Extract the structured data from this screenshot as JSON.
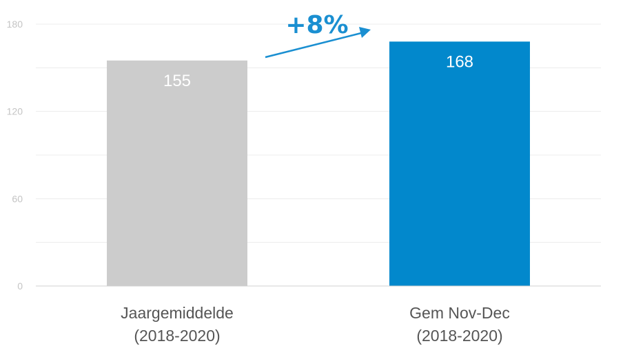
{
  "chart_data": {
    "type": "bar",
    "title": "",
    "xlabel": "",
    "ylabel": "",
    "ylim": [
      0,
      180
    ],
    "yticks": [
      0,
      60,
      120,
      180
    ],
    "grid": true,
    "categories": [
      [
        "Jaargemiddelde",
        "(2018-2020)"
      ],
      [
        "Gem Nov-Dec",
        "(2018-2020)"
      ]
    ],
    "values": [
      155,
      168
    ],
    "data_labels": [
      "155",
      "168"
    ],
    "bar_colors": [
      "#cccccc",
      "#0288cc"
    ],
    "annotation": {
      "text": "+8%",
      "color": "#1a8fd1"
    }
  }
}
